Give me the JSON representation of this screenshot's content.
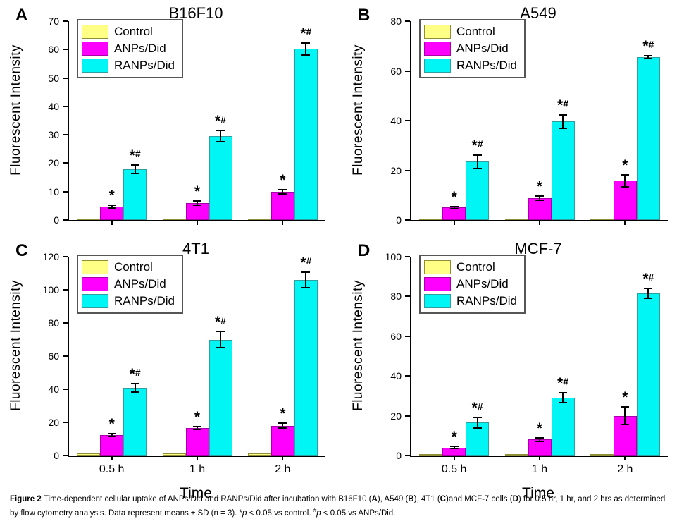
{
  "figure_title": "Figure 2",
  "legend": {
    "items": [
      {
        "key": "control",
        "label": "Control",
        "fill": "#FFFF85",
        "border": "#8f8f3a"
      },
      {
        "key": "anps",
        "label": "ANPs/Did",
        "fill": "#FF00FF",
        "border": "#a800a8"
      },
      {
        "key": "ranps",
        "label": "RANPs/Did",
        "fill": "#00F5F5",
        "border": "#2e9e9e"
      }
    ]
  },
  "axis": {
    "ylabel": "Fluorescent Intensity",
    "xlabel": "Time",
    "categories": [
      "0.5 h",
      "1 h",
      "2 h"
    ]
  },
  "chart_data": [
    {
      "panel": "A",
      "type": "bar",
      "title": "B16F10",
      "xlabel": "Time",
      "ylabel": "Fluorescent Intensity",
      "categories": [
        "0.5 h",
        "1 h",
        "2 h"
      ],
      "show_x_labels": false,
      "ylim": [
        0,
        70
      ],
      "ytick_step": 10,
      "grid": false,
      "legend_position": "top-left",
      "series": [
        {
          "name": "Control",
          "key": "control",
          "values": [
            0.5,
            0.5,
            0.5
          ],
          "errors": [
            0,
            0,
            0
          ],
          "annotations": [
            "",
            "",
            ""
          ]
        },
        {
          "name": "ANPs/Did",
          "key": "anps",
          "values": [
            4.6,
            6.0,
            9.9
          ],
          "errors": [
            0.5,
            0.7,
            0.8
          ],
          "annotations": [
            "*",
            "*",
            "*"
          ]
        },
        {
          "name": "RANPs/Did",
          "key": "ranps",
          "values": [
            17.8,
            29.6,
            60.2
          ],
          "errors": [
            1.5,
            2.0,
            2.0
          ],
          "annotations": [
            "*#",
            "*#",
            "*#"
          ]
        }
      ]
    },
    {
      "panel": "B",
      "type": "bar",
      "title": "A549",
      "xlabel": "Time",
      "ylabel": "Fluorescent Intensity",
      "categories": [
        "0.5 h",
        "1 h",
        "2 h"
      ],
      "show_x_labels": false,
      "ylim": [
        0,
        80
      ],
      "ytick_step": 20,
      "grid": false,
      "legend_position": "top-left",
      "series": [
        {
          "name": "Control",
          "key": "control",
          "values": [
            0.6,
            0.6,
            0.7
          ],
          "errors": [
            0,
            0,
            0
          ],
          "annotations": [
            "",
            "",
            ""
          ]
        },
        {
          "name": "ANPs/Did",
          "key": "anps",
          "values": [
            5.0,
            8.8,
            15.8
          ],
          "errors": [
            0.5,
            0.8,
            2.5
          ],
          "annotations": [
            "*",
            "*",
            "*"
          ]
        },
        {
          "name": "RANPs/Did",
          "key": "ranps",
          "values": [
            23.5,
            39.6,
            65.5
          ],
          "errors": [
            2.7,
            2.8,
            0.6
          ],
          "annotations": [
            "*#",
            "*#",
            "*#"
          ]
        }
      ]
    },
    {
      "panel": "C",
      "type": "bar",
      "title": "4T1",
      "xlabel": "Time",
      "ylabel": "Fluorescent Intensity",
      "categories": [
        "0.5 h",
        "1 h",
        "2 h"
      ],
      "show_x_labels": true,
      "ylim": [
        0,
        120
      ],
      "ytick_step": 20,
      "grid": false,
      "legend_position": "top-left",
      "series": [
        {
          "name": "Control",
          "key": "control",
          "values": [
            1.2,
            1.2,
            1.3
          ],
          "errors": [
            0,
            0,
            0
          ],
          "annotations": [
            "",
            "",
            ""
          ]
        },
        {
          "name": "ANPs/Did",
          "key": "anps",
          "values": [
            12.5,
            16.5,
            18.0
          ],
          "errors": [
            0.8,
            0.8,
            1.6
          ],
          "annotations": [
            "*",
            "*",
            "*"
          ]
        },
        {
          "name": "RANPs/Did",
          "key": "ranps",
          "values": [
            41.0,
            70.0,
            106.0
          ],
          "errors": [
            2.6,
            5.0,
            4.8
          ],
          "annotations": [
            "*#",
            "*#",
            "*#"
          ]
        }
      ]
    },
    {
      "panel": "D",
      "type": "bar",
      "title": "MCF-7",
      "xlabel": "Time",
      "ylabel": "Fluorescent Intensity",
      "categories": [
        "0.5 h",
        "1 h",
        "2 h"
      ],
      "show_x_labels": true,
      "ylim": [
        0,
        100
      ],
      "ytick_step": 20,
      "grid": false,
      "legend_position": "top-left",
      "series": [
        {
          "name": "Control",
          "key": "control",
          "values": [
            0.7,
            0.8,
            0.8
          ],
          "errors": [
            0,
            0,
            0
          ],
          "annotations": [
            "",
            "",
            ""
          ]
        },
        {
          "name": "ANPs/Did",
          "key": "anps",
          "values": [
            4.0,
            8.0,
            20.0
          ],
          "errors": [
            0.6,
            1.0,
            4.3
          ],
          "annotations": [
            "*",
            "*",
            "*"
          ]
        },
        {
          "name": "RANPs/Did",
          "key": "ranps",
          "values": [
            16.5,
            29.0,
            81.5
          ],
          "errors": [
            2.7,
            2.5,
            2.5
          ],
          "annotations": [
            "*#",
            "*#",
            "*#"
          ]
        }
      ]
    }
  ],
  "caption": {
    "segments": [
      {
        "text": "Figure 2 ",
        "bold": true
      },
      {
        "text": "Time-dependent cellular uptake of ANPs/Did and RANPs/Did after incubation with B16F10 ("
      },
      {
        "text": "A",
        "bold": true
      },
      {
        "text": "), A549 ("
      },
      {
        "text": "B",
        "bold": true
      },
      {
        "text": "), 4T1 ("
      },
      {
        "text": "C",
        "bold": true
      },
      {
        "text": ")and MCF-7 cells ("
      },
      {
        "text": "D",
        "bold": true
      },
      {
        "text": ") for 0.5 hr, 1 hr, and 2 hrs as determined by flow cytometry analysis. Data represent means ± SD (n = 3). *"
      },
      {
        "text": "p",
        "italic": true
      },
      {
        "text": " < 0.05 vs control. "
      },
      {
        "text": "#",
        "sup": true
      },
      {
        "text": "p",
        "italic": true
      },
      {
        "text": " < 0.05 vs ANPs/Did."
      }
    ]
  }
}
